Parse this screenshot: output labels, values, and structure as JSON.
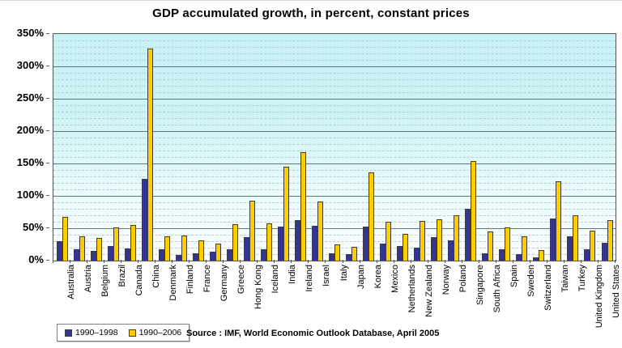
{
  "title": "GDP accumulated growth, in percent, constant prices",
  "source_note": "Source : IMF, World Economic Outlook Database, April 2005",
  "legend": {
    "items": [
      {
        "label": "1990–1998",
        "color": "#333399"
      },
      {
        "label": "1990–2006",
        "color": "#FFCC00"
      }
    ],
    "position": "bottom-left"
  },
  "chart_data": {
    "type": "bar",
    "title": "GDP accumulated growth, in percent, constant prices",
    "xlabel": "",
    "ylabel": "",
    "ylim": [
      0,
      350
    ],
    "y_major_step": 50,
    "y_minor_step": 10,
    "y_tick_labels": [
      "0%",
      "50%",
      "100%",
      "150%",
      "200%",
      "250%",
      "300%",
      "350%"
    ],
    "grid": true,
    "legend_position": "bottom-left",
    "plot_background": {
      "top": "#c7f2f6",
      "bottom": "#fdfefe"
    },
    "categories": [
      "Australia",
      "Austria",
      "Belgium",
      "Brazil",
      "Canada",
      "China",
      "Denmark",
      "Finland",
      "France",
      "Germany",
      "Greece",
      "Hong Kong",
      "Iceland",
      "India",
      "Ireland",
      "Israel",
      "Italy",
      "Japan",
      "Korea",
      "Mexico",
      "Netherlands",
      "New Zealand",
      "Norway",
      "Poland",
      "Singapore",
      "South Africa",
      "Spain",
      "Sweden",
      "Switzerland",
      "Taiwan",
      "Turkey",
      "United Kingdom",
      "United States"
    ],
    "series": [
      {
        "name": "1990–1998",
        "color": "#333399",
        "values": [
          30,
          18,
          15,
          22,
          19,
          126,
          18,
          9,
          11,
          14,
          17,
          36,
          18,
          52,
          63,
          54,
          11,
          10,
          52,
          26,
          22,
          20,
          36,
          31,
          80,
          11,
          18,
          10,
          5,
          65,
          37,
          17,
          27
        ]
      },
      {
        "name": "1990–2006",
        "color": "#FFCC00",
        "values": [
          68,
          38,
          35,
          51,
          55,
          327,
          38,
          39,
          31,
          26,
          56,
          92,
          57,
          145,
          168,
          91,
          25,
          21,
          136,
          60,
          41,
          61,
          64,
          70,
          154,
          45,
          51,
          38,
          16,
          122,
          70,
          46,
          62
        ]
      }
    ]
  }
}
